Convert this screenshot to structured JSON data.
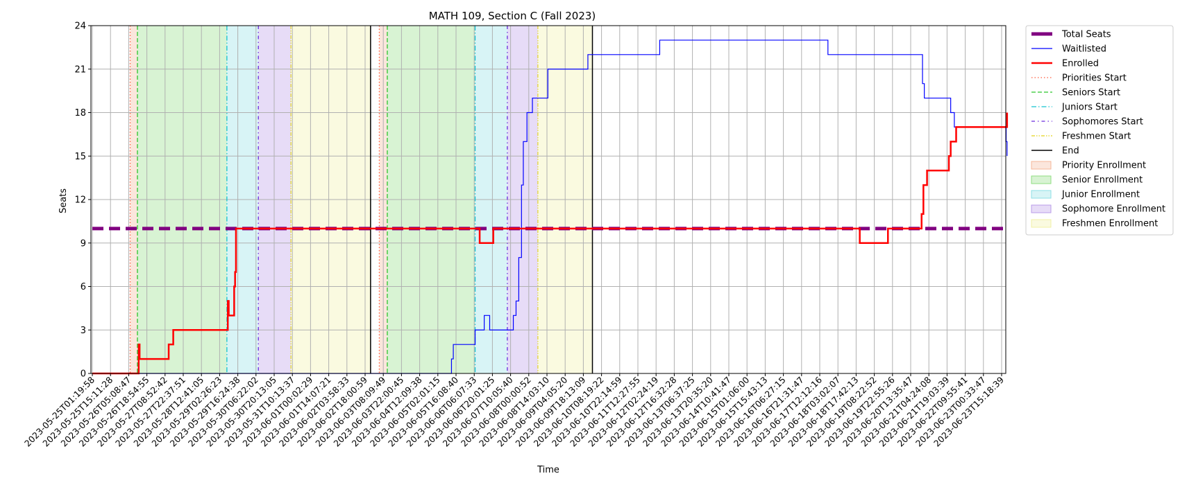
{
  "chart_data": {
    "type": "line",
    "title": "MATH 109, Section C (Fall 2023)",
    "xlabel": "Time",
    "ylabel": "Seats",
    "ylim": [
      0,
      24
    ],
    "yticks": [
      0,
      3,
      6,
      9,
      12,
      15,
      18,
      21,
      24
    ],
    "grid": true,
    "legend_position": "outside-right",
    "x_tick_labels": [
      "2023-05-25T01:19:58",
      "2023-05-25T15:11:28",
      "2023-05-26T05:08:47",
      "2023-05-26T18:54:55",
      "2023-05-27T08:52:42",
      "2023-05-27T22:37:51",
      "2023-05-28T12:41:05",
      "2023-05-29T02:26:23",
      "2023-05-29T16:24:38",
      "2023-05-30T06:22:02",
      "2023-05-30T20:13:05",
      "2023-05-31T10:13:37",
      "2023-06-01T00:02:29",
      "2023-06-01T14:07:21",
      "2023-06-02T03:58:33",
      "2023-06-02T18:00:59",
      "2023-06-03T08:09:49",
      "2023-06-03T22:00:45",
      "2023-06-04T12:09:38",
      "2023-06-05T02:01:15",
      "2023-06-05T16:08:40",
      "2023-06-06T06:07:33",
      "2023-06-06T20:01:25",
      "2023-06-07T10:05:40",
      "2023-06-08T00:00:52",
      "2023-06-08T14:03:10",
      "2023-06-09T04:05:20",
      "2023-06-09T18:13:09",
      "2023-06-10T08:19:22",
      "2023-06-10T22:14:59",
      "2023-06-11T12:27:55",
      "2023-06-12T02:24:19",
      "2023-06-12T16:32:28",
      "2023-06-13T06:37:25",
      "2023-06-13T20:35:20",
      "2023-06-14T10:41:47",
      "2023-06-15T01:06:00",
      "2023-06-15T15:43:13",
      "2023-06-16T06:27:15",
      "2023-06-16T21:31:47",
      "2023-06-17T12:12:16",
      "2023-06-18T03:02:07",
      "2023-06-18T17:42:13",
      "2023-06-19T08:22:52",
      "2023-06-19T22:55:26",
      "2023-06-20T13:35:47",
      "2023-06-21T04:24:08",
      "2023-06-21T19:03:39",
      "2023-06-22T09:55:41",
      "2023-06-23T00:33:47",
      "2023-06-23T15:18:39"
    ],
    "x_range": [
      0,
      50.3
    ],
    "bands": [
      {
        "name": "Priority Enrollment",
        "color": "#f4b79a",
        "ranges": [
          [
            2.08,
            2.48
          ],
          [
            15.78,
            16.22
          ]
        ]
      },
      {
        "name": "Senior Enrollment",
        "color": "#8fde80",
        "ranges": [
          [
            2.48,
            7.4
          ],
          [
            16.22,
            21.05
          ]
        ]
      },
      {
        "name": "Junior Enrollment",
        "color": "#8edfe5",
        "ranges": [
          [
            7.4,
            9.13
          ],
          [
            21.05,
            22.82
          ]
        ]
      },
      {
        "name": "Sophomore Enrollment",
        "color": "#b99ce8",
        "ranges": [
          [
            9.13,
            10.92
          ],
          [
            22.82,
            24.5
          ]
        ]
      },
      {
        "name": "Freshmen Enrollment",
        "color": "#f0f0a6",
        "ranges": [
          [
            10.92,
            15.3
          ],
          [
            24.5,
            27.5
          ]
        ]
      }
    ],
    "vlines": [
      {
        "name": "Priorities Start",
        "color": "#ff5a3c",
        "dash": "1.5 3",
        "width": 1.3,
        "x": [
          2.08,
          15.78
        ]
      },
      {
        "name": "Seniors Start",
        "color": "#2bc52b",
        "dash": "6 3",
        "width": 1.3,
        "x": [
          2.48,
          16.22
        ]
      },
      {
        "name": "Juniors Start",
        "color": "#12c2cf",
        "dash": "7 3 1.5 3",
        "width": 1.3,
        "x": [
          7.4,
          21.05
        ]
      },
      {
        "name": "Sophomores Start",
        "color": "#6a2bdc",
        "dash": "5 4 1.5 4",
        "width": 1.3,
        "x": [
          9.13,
          22.82
        ]
      },
      {
        "name": "Freshmen Start",
        "color": "#e3d21a",
        "dash": "5 2 1.5 2 1.5 2",
        "width": 1.1,
        "x": [
          10.92,
          24.5
        ]
      },
      {
        "name": "End",
        "color": "#000000",
        "dash": "",
        "width": 1.5,
        "x": [
          15.3,
          27.5
        ]
      }
    ],
    "series": [
      {
        "name": "Total Seats",
        "color": "#800080",
        "width": 5,
        "dash": "16 8",
        "x": [
          0,
          50.3
        ],
        "y": [
          10,
          10
        ]
      },
      {
        "name": "Waitlisted",
        "color": "#0000ff",
        "width": 1.2,
        "dash": "",
        "x": [
          0,
          19.7,
          19.75,
          19.85,
          21.05,
          21.55,
          21.85,
          22.15,
          22.3,
          22.35,
          22.45,
          22.65,
          22.85,
          23.15,
          23.3,
          23.45,
          23.6,
          23.7,
          23.9,
          24.2,
          24.75,
          25.05,
          27.25,
          29.6,
          31.2,
          40.45,
          44.1,
          45.6,
          45.65,
          45.75,
          47.1,
          47.2,
          47.4,
          50.25,
          50.3
        ],
        "y": [
          0,
          0,
          1,
          2,
          3,
          4,
          3,
          3,
          3,
          3,
          3,
          3,
          3,
          4,
          5,
          8,
          13,
          16,
          18,
          19,
          19,
          21,
          22,
          22,
          23,
          22,
          22,
          22,
          20,
          19,
          19,
          18,
          17,
          16,
          15
        ]
      },
      {
        "name": "Enrolled",
        "color": "#ff0000",
        "width": 2.5,
        "dash": "",
        "x": [
          0,
          2.5,
          2.55,
          2.6,
          2.65,
          4.2,
          4.35,
          4.45,
          7.45,
          7.5,
          7.6,
          7.8,
          7.85,
          7.9,
          21.3,
          22.05,
          42.2,
          43.75,
          44.8,
          45.6,
          45.7,
          45.9,
          46.1,
          46.2,
          47.1,
          47.2,
          47.4,
          47.5,
          47.6,
          50.25,
          50.3
        ],
        "y": [
          0,
          0,
          2,
          1,
          1,
          2,
          2,
          3,
          5,
          4,
          4,
          6,
          7,
          10,
          9,
          10,
          9,
          10,
          10,
          11,
          13,
          14,
          14,
          14,
          15,
          16,
          16,
          17,
          17,
          17,
          18
        ]
      }
    ]
  }
}
